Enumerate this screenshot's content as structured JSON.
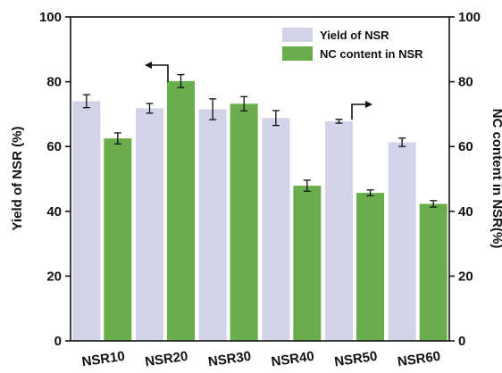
{
  "chart_data": {
    "type": "bar",
    "categories": [
      "NSR10",
      "NSR20",
      "NSR30",
      "NSR40",
      "NSR50",
      "NSR60"
    ],
    "series": [
      {
        "name": "Yield of NSR",
        "color": "#d3d3e8",
        "axis": "left",
        "values": [
          74.0,
          71.8,
          71.5,
          68.8,
          67.8,
          61.3
        ],
        "errors": [
          2.0,
          1.5,
          3.2,
          2.3,
          0.6,
          1.3
        ]
      },
      {
        "name": "NC content in NSR",
        "color": "#6aad4c",
        "axis": "right",
        "values": [
          62.5,
          80.2,
          73.2,
          47.9,
          45.7,
          42.3
        ],
        "errors": [
          1.7,
          2.0,
          2.2,
          1.7,
          0.9,
          1.0
        ]
      }
    ],
    "ylabel": "Yield of NSR (%)",
    "y2label": "NC content in NSR(%)",
    "ylim": [
      0,
      100
    ],
    "y2lim": [
      0,
      100
    ],
    "yticks": [
      0,
      20,
      40,
      60,
      80,
      100
    ],
    "grid": false,
    "legend": "top-right",
    "annotations": [
      {
        "type": "arrow-left",
        "category": "NSR20",
        "meaning": "Yield of NSR on left axis"
      },
      {
        "type": "arrow-right",
        "category": "NSR50",
        "meaning": "NC content in NSR on right axis"
      }
    ]
  }
}
